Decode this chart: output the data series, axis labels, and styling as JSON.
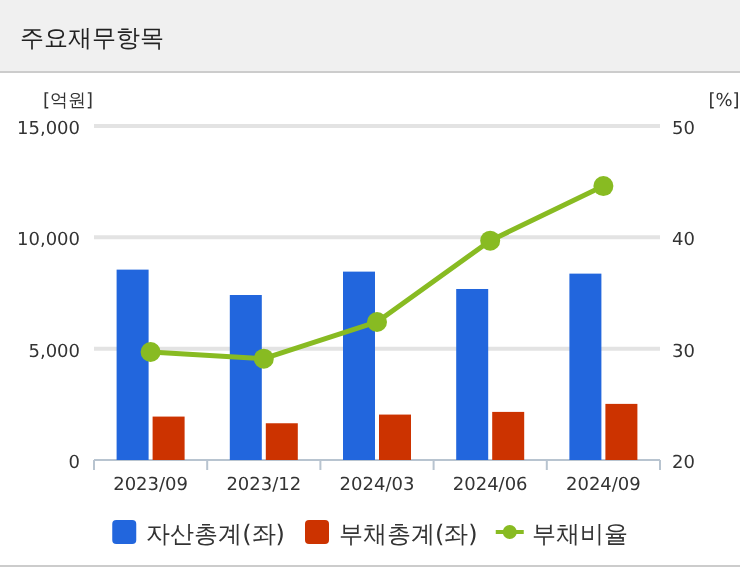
{
  "chart_data": {
    "type": "bar",
    "title": "주요재무항목",
    "ylabel": "[억원]",
    "y2label": "[%]",
    "categories": [
      "2023/09",
      "2023/12",
      "2024/03",
      "2024/06",
      "2024/09"
    ],
    "series": [
      {
        "name": "자산총계(좌)",
        "color": "#2266dd",
        "values": [
          8550,
          7410,
          8460,
          7680,
          8370
        ]
      },
      {
        "name": "부채총계(좌)",
        "color": "#cc3300",
        "values": [
          1950,
          1650,
          2040,
          2160,
          2520
        ]
      },
      {
        "name": "부채비율",
        "type": "line",
        "axis": "y2",
        "color": "#88bb22",
        "marker": "circle",
        "values": [
          29.7,
          29.1,
          32.4,
          39.7,
          44.6
        ]
      }
    ],
    "ylim": [
      0,
      15000
    ],
    "yticks": [
      {
        "value": 0,
        "label": "0"
      },
      {
        "value": 5000,
        "label": "5,000"
      },
      {
        "value": 10000,
        "label": "10,000"
      },
      {
        "value": 15000,
        "label": "15,000"
      }
    ],
    "y2lim": [
      20,
      50
    ],
    "y2ticks": [
      20,
      30,
      40,
      50
    ],
    "grid": "y",
    "legend": "bottom"
  }
}
